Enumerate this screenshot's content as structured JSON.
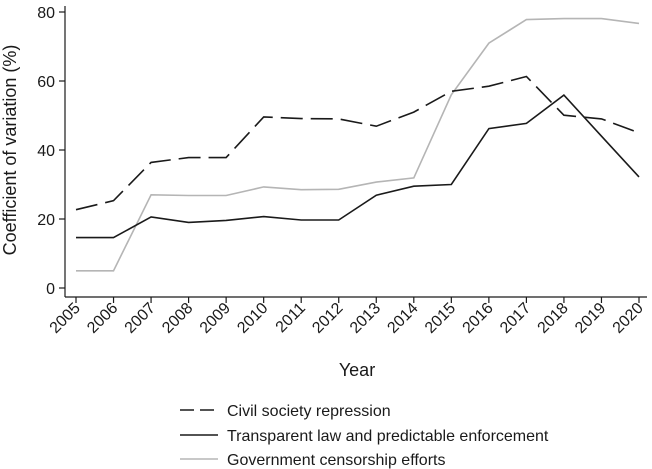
{
  "chart_data": {
    "type": "line",
    "xlabel": "Year",
    "ylabel": "Coefficient of variation (%)",
    "ylim": [
      0,
      80
    ],
    "yticks": [
      "0",
      "20",
      "40",
      "60",
      "80"
    ],
    "categories": [
      "2005",
      "2006",
      "2007",
      "2008",
      "2009",
      "2010",
      "2011",
      "2012",
      "2013",
      "2014",
      "2015",
      "2016",
      "2017",
      "2018",
      "2019",
      "2020"
    ],
    "grid": false,
    "legend_position": "bottom",
    "series": [
      {
        "name": "Civil society repression",
        "style": "dashed",
        "color": "#1a1a1a",
        "values": [
          22.7,
          25.3,
          36.4,
          37.8,
          37.8,
          49.6,
          49.1,
          49.0,
          46.9,
          51.0,
          57.0,
          58.5,
          61.3,
          50.1,
          49.0,
          45.0
        ]
      },
      {
        "name": "Transparent law and predictable enforcement",
        "style": "solid",
        "color": "#1a1a1a",
        "values": [
          14.6,
          14.6,
          20.6,
          19.0,
          19.6,
          20.7,
          19.7,
          19.7,
          26.9,
          29.5,
          30.0,
          46.2,
          47.7,
          55.9,
          44.0,
          32.2
        ]
      },
      {
        "name": "Government censorship efforts",
        "style": "solid",
        "color": "#b5b5b5",
        "values": [
          5.0,
          5.0,
          27.0,
          26.8,
          26.8,
          29.3,
          28.5,
          28.6,
          30.7,
          31.9,
          56.0,
          71.0,
          77.8,
          78.1,
          78.1,
          76.7
        ]
      }
    ]
  }
}
